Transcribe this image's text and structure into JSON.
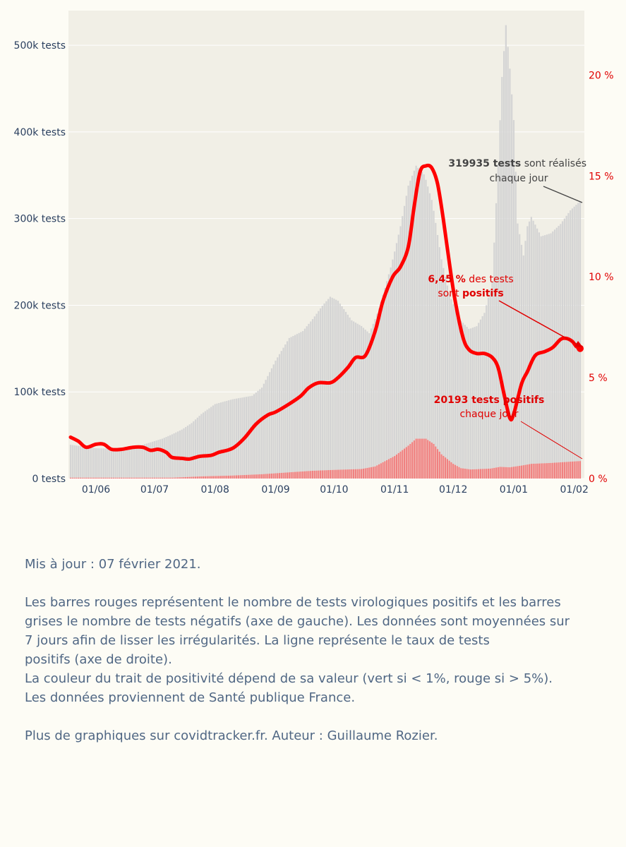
{
  "chart_data": {
    "type": "bar",
    "x_start": "2020-05-19",
    "x_end": "2021-02-04",
    "x_tick_labels": [
      "01/06",
      "01/07",
      "01/08",
      "01/09",
      "01/10",
      "01/11",
      "01/12",
      "01/01",
      "01/02"
    ],
    "y_left": {
      "range": [
        0,
        540000
      ],
      "ticks": [
        0,
        100000,
        200000,
        300000,
        400000,
        500000
      ],
      "tick_labels": [
        "0 tests",
        "100k tests",
        "200k tests",
        "300k tests",
        "400k tests",
        "500k tests"
      ]
    },
    "y_right": {
      "range": [
        0,
        23.2
      ],
      "ticks": [
        0,
        5,
        10,
        15,
        20
      ],
      "tick_labels": [
        "0 %",
        "5 %",
        "10 %",
        "15 %",
        "20 %"
      ]
    },
    "grid": true,
    "colors": {
      "plot_bg": "#f1efe6",
      "negative_bars": "#d4d4d4",
      "positive_bars": "#f08080",
      "positivity_line": "#ff0000",
      "left_axis": "#2a3f5f",
      "right_axis": "#e00000"
    },
    "series": [
      {
        "name": "tests négatifs",
        "kind": "bar_stacked",
        "points": [
          [
            "2020-05-19",
            38000
          ],
          [
            "2020-06-01",
            34000
          ],
          [
            "2020-06-15",
            33000
          ],
          [
            "2020-06-25",
            38000
          ],
          [
            "2020-07-05",
            45000
          ],
          [
            "2020-07-15",
            55000
          ],
          [
            "2020-07-20",
            62000
          ],
          [
            "2020-07-25",
            72000
          ],
          [
            "2020-08-01",
            83000
          ],
          [
            "2020-08-10",
            88000
          ],
          [
            "2020-08-20",
            91000
          ],
          [
            "2020-08-25",
            100000
          ],
          [
            "2020-09-01",
            130000
          ],
          [
            "2020-09-08",
            155000
          ],
          [
            "2020-09-15",
            162000
          ],
          [
            "2020-09-20",
            175000
          ],
          [
            "2020-09-25",
            190000
          ],
          [
            "2020-09-29",
            200000
          ],
          [
            "2020-10-03",
            195000
          ],
          [
            "2020-10-10",
            172000
          ],
          [
            "2020-10-15",
            165000
          ],
          [
            "2020-10-19",
            155000
          ],
          [
            "2020-10-24",
            180000
          ],
          [
            "2020-10-30",
            220000
          ],
          [
            "2020-11-04",
            260000
          ],
          [
            "2020-11-08",
            300000
          ],
          [
            "2020-11-12",
            315000
          ],
          [
            "2020-11-16",
            305000
          ],
          [
            "2020-11-20",
            280000
          ],
          [
            "2020-11-25",
            225000
          ],
          [
            "2020-11-29",
            192000
          ],
          [
            "2020-12-04",
            172000
          ],
          [
            "2020-12-09",
            162000
          ],
          [
            "2020-12-13",
            165000
          ],
          [
            "2020-12-17",
            180000
          ],
          [
            "2020-12-21",
            215000
          ],
          [
            "2020-12-24",
            350000
          ],
          [
            "2020-12-26",
            450000
          ],
          [
            "2020-12-28",
            510000
          ],
          [
            "2020-12-30",
            460000
          ],
          [
            "2021-01-01",
            400000
          ],
          [
            "2021-01-03",
            280000
          ],
          [
            "2021-01-06",
            242000
          ],
          [
            "2021-01-08",
            275000
          ],
          [
            "2021-01-10",
            285000
          ],
          [
            "2021-01-15",
            262000
          ],
          [
            "2021-01-20",
            265000
          ],
          [
            "2021-01-25",
            275000
          ],
          [
            "2021-01-30",
            290000
          ],
          [
            "2021-02-04",
            300000
          ]
        ]
      },
      {
        "name": "tests positifs",
        "kind": "bar_stacked",
        "points": [
          [
            "2020-05-19",
            1000
          ],
          [
            "2020-07-10",
            1000
          ],
          [
            "2020-07-25",
            2500
          ],
          [
            "2020-08-10",
            3500
          ],
          [
            "2020-08-25",
            5000
          ],
          [
            "2020-09-10",
            7500
          ],
          [
            "2020-09-20",
            9000
          ],
          [
            "2020-10-01",
            10000
          ],
          [
            "2020-10-15",
            11000
          ],
          [
            "2020-10-22",
            14000
          ],
          [
            "2020-11-01",
            26000
          ],
          [
            "2020-11-08",
            38000
          ],
          [
            "2020-11-12",
            46000
          ],
          [
            "2020-11-17",
            46000
          ],
          [
            "2020-11-21",
            40000
          ],
          [
            "2020-11-25",
            28000
          ],
          [
            "2020-12-01",
            17000
          ],
          [
            "2020-12-05",
            12000
          ],
          [
            "2020-12-10",
            10500
          ],
          [
            "2020-12-20",
            11500
          ],
          [
            "2020-12-25",
            13500
          ],
          [
            "2020-12-30",
            13000
          ],
          [
            "2021-01-05",
            15000
          ],
          [
            "2021-01-10",
            17000
          ],
          [
            "2021-01-20",
            18000
          ],
          [
            "2021-01-30",
            19500
          ],
          [
            "2021-02-04",
            20193
          ]
        ]
      },
      {
        "name": "taux de positivité (%)",
        "kind": "line",
        "axis": "right",
        "points": [
          [
            "2020-05-19",
            2.05
          ],
          [
            "2020-05-23",
            1.85
          ],
          [
            "2020-05-27",
            1.55
          ],
          [
            "2020-06-01",
            1.7
          ],
          [
            "2020-06-05",
            1.7
          ],
          [
            "2020-06-09",
            1.45
          ],
          [
            "2020-06-14",
            1.45
          ],
          [
            "2020-06-20",
            1.55
          ],
          [
            "2020-06-25",
            1.55
          ],
          [
            "2020-06-29",
            1.4
          ],
          [
            "2020-07-03",
            1.45
          ],
          [
            "2020-07-07",
            1.3
          ],
          [
            "2020-07-10",
            1.05
          ],
          [
            "2020-07-15",
            1.0
          ],
          [
            "2020-07-19",
            0.97
          ],
          [
            "2020-07-24",
            1.1
          ],
          [
            "2020-07-30",
            1.15
          ],
          [
            "2020-08-03",
            1.3
          ],
          [
            "2020-08-10",
            1.5
          ],
          [
            "2020-08-16",
            2.0
          ],
          [
            "2020-08-22",
            2.7
          ],
          [
            "2020-08-28",
            3.15
          ],
          [
            "2020-09-01",
            3.3
          ],
          [
            "2020-09-08",
            3.7
          ],
          [
            "2020-09-14",
            4.1
          ],
          [
            "2020-09-18",
            4.5
          ],
          [
            "2020-09-23",
            4.75
          ],
          [
            "2020-09-29",
            4.75
          ],
          [
            "2020-10-03",
            5.0
          ],
          [
            "2020-10-08",
            5.5
          ],
          [
            "2020-10-12",
            6.0
          ],
          [
            "2020-10-17",
            6.1
          ],
          [
            "2020-10-22",
            7.3
          ],
          [
            "2020-10-26",
            8.8
          ],
          [
            "2020-10-31",
            10.0
          ],
          [
            "2020-11-04",
            10.5
          ],
          [
            "2020-11-08",
            11.5
          ],
          [
            "2020-11-11",
            13.5
          ],
          [
            "2020-11-14",
            15.2
          ],
          [
            "2020-11-17",
            15.5
          ],
          [
            "2020-11-20",
            15.4
          ],
          [
            "2020-11-23",
            14.6
          ],
          [
            "2020-11-26",
            12.8
          ],
          [
            "2020-11-29",
            10.7
          ],
          [
            "2020-12-02",
            8.8
          ],
          [
            "2020-12-06",
            7.0
          ],
          [
            "2020-12-09",
            6.4
          ],
          [
            "2020-12-13",
            6.2
          ],
          [
            "2020-12-17",
            6.2
          ],
          [
            "2020-12-21",
            6.0
          ],
          [
            "2020-12-24",
            5.5
          ],
          [
            "2020-12-27",
            4.2
          ],
          [
            "2020-12-30",
            3.0
          ],
          [
            "2021-01-01",
            3.2
          ],
          [
            "2021-01-05",
            4.7
          ],
          [
            "2021-01-08",
            5.3
          ],
          [
            "2021-01-12",
            6.1
          ],
          [
            "2021-01-17",
            6.3
          ],
          [
            "2021-01-21",
            6.5
          ],
          [
            "2021-01-25",
            6.9
          ],
          [
            "2021-01-28",
            6.95
          ],
          [
            "2021-01-31",
            6.8
          ],
          [
            "2021-02-02",
            6.55
          ],
          [
            "2021-02-04",
            6.45
          ]
        ]
      }
    ],
    "annotations": [
      {
        "bold": "319935 tests",
        "text1": " sont réalisés",
        "text2": "chaque jour",
        "color": "grey"
      },
      {
        "bold": "6,45 %",
        "text1": " des tests",
        "text2a": "sont ",
        "text2b": "positifs",
        "color": "red"
      },
      {
        "bold": "20193 tests positifs",
        "text2": "chaque jour",
        "color": "red"
      }
    ]
  },
  "caption": {
    "updated": "Mis à jour : 07 février 2021.",
    "desc_line1": "Les barres rouges représentent le nombre de tests virologiques positifs et les barres",
    "desc_line2": "grises le nombre de tests négatifs (axe de gauche). Les données sont moyennées sur",
    "desc_line3": "7 jours afin de lisser les irrégularités. La ligne représente le taux de tests",
    "desc_line4": "positifs (axe de droite).",
    "desc_line5": "La couleur du trait de positivité dépend de sa valeur (vert si < 1%, rouge si > 5%).",
    "desc_line6": "Les données proviennent de Santé publique France.",
    "more": "Plus de graphiques sur covidtracker.fr. Auteur : Guillaume Rozier."
  }
}
